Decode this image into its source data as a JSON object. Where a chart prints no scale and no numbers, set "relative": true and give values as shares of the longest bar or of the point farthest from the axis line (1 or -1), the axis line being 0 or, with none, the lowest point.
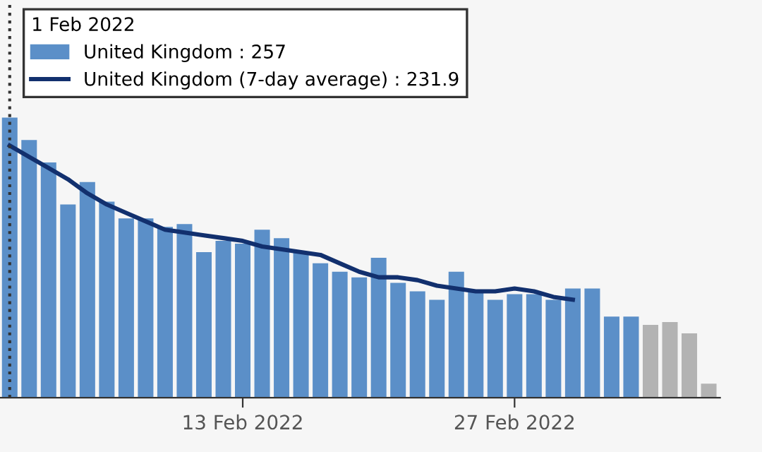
{
  "chart_data": {
    "type": "bar",
    "relative": true,
    "legend": "top left",
    "legend_title": "1 Feb 2022",
    "x": [
      "2022-02-01",
      "2022-02-02",
      "2022-02-03",
      "2022-02-04",
      "2022-02-05",
      "2022-02-06",
      "2022-02-07",
      "2022-02-08",
      "2022-02-09",
      "2022-02-10",
      "2022-02-11",
      "2022-02-12",
      "2022-02-13",
      "2022-02-14",
      "2022-02-15",
      "2022-02-16",
      "2022-02-17",
      "2022-02-18",
      "2022-02-19",
      "2022-02-20",
      "2022-02-21",
      "2022-02-22",
      "2022-02-23",
      "2022-02-24",
      "2022-02-25",
      "2022-02-26",
      "2022-02-27",
      "2022-02-28",
      "2022-03-01",
      "2022-03-02",
      "2022-03-03",
      "2022-03-04",
      "2022-03-05",
      "2022-03-06",
      "2022-03-07",
      "2022-03-08",
      "2022-03-09"
    ],
    "xlim": [
      "2022-01-31T12:00",
      "2022-03-09T14:00"
    ],
    "xticks": [
      {
        "value": "2022-02-13",
        "label": "13 Feb 2022"
      },
      {
        "value": "2022-02-27",
        "label": "27 Feb 2022"
      }
    ],
    "ref_lines": [
      {
        "axis": "x",
        "value": "2022-02-01",
        "color": "#333333",
        "line_style": "dotted"
      }
    ],
    "series": [
      {
        "name": "United Kingdom : 257",
        "color": "#5b8fc8",
        "colors": [
          "#5b8fc8",
          "#5b8fc8",
          "#5b8fc8",
          "#5b8fc8",
          "#5b8fc8",
          "#5b8fc8",
          "#5b8fc8",
          "#5b8fc8",
          "#5b8fc8",
          "#5b8fc8",
          "#5b8fc8",
          "#5b8fc8",
          "#5b8fc8",
          "#5b8fc8",
          "#5b8fc8",
          "#5b8fc8",
          "#5b8fc8",
          "#5b8fc8",
          "#5b8fc8",
          "#5b8fc8",
          "#5b8fc8",
          "#5b8fc8",
          "#5b8fc8",
          "#5b8fc8",
          "#5b8fc8",
          "#5b8fc8",
          "#5b8fc8",
          "#5b8fc8",
          "#5b8fc8",
          "#5b8fc8",
          "#5b8fc8",
          "#5b8fc8",
          "#5b8fc8",
          "#b3b3b3",
          "#b3b3b3",
          "#b3b3b3",
          "#b3b3b3"
        ],
        "values": [
          1.0,
          0.92,
          0.84,
          0.69,
          0.77,
          0.7,
          0.64,
          0.64,
          0.61,
          0.62,
          0.52,
          0.56,
          0.55,
          0.6,
          0.57,
          0.52,
          0.48,
          0.45,
          0.43,
          0.5,
          0.41,
          0.38,
          0.35,
          0.45,
          0.38,
          0.35,
          0.37,
          0.37,
          0.35,
          0.39,
          0.39,
          0.29,
          0.29,
          0.26,
          0.27,
          0.23,
          0.05
        ]
      },
      {
        "name": "United Kingdom (7-day average) : 231.9",
        "type": "line",
        "color": "#12306e",
        "values": [
          0.9,
          0.86,
          0.82,
          0.78,
          0.73,
          0.69,
          0.66,
          0.63,
          0.6,
          0.59,
          0.58,
          0.57,
          0.56,
          0.54,
          0.53,
          0.52,
          0.51,
          0.48,
          0.45,
          0.43,
          0.43,
          0.42,
          0.4,
          0.39,
          0.38,
          0.38,
          0.39,
          0.38,
          0.36,
          0.35,
          null,
          null,
          null,
          null,
          null,
          null,
          null
        ]
      }
    ]
  }
}
